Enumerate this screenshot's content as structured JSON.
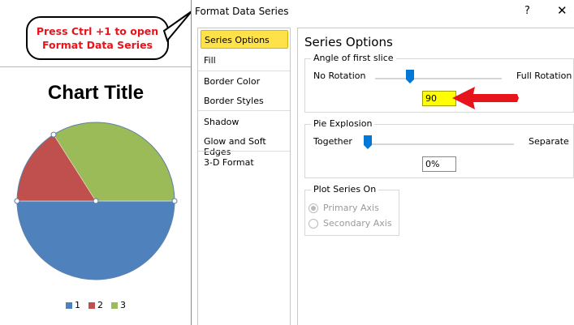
{
  "callout": {
    "line1": "Press Ctrl +1 to open",
    "line2": "Format Data Series"
  },
  "chart": {
    "title": "Chart Title"
  },
  "chart_data": {
    "type": "pie",
    "title": "Chart Title",
    "categories": [
      "1",
      "2",
      "3"
    ],
    "values": [
      50,
      16,
      34
    ],
    "colors": [
      "#4f81bd",
      "#c0504d",
      "#9bbb59"
    ],
    "first_slice_angle": 90,
    "legend_position": "bottom"
  },
  "dialog": {
    "title": "Format Data Series",
    "help": "?",
    "close": "✕",
    "nav": [
      "Series Options",
      "Fill",
      "Border Color",
      "Border Styles",
      "Shadow",
      "Glow and Soft Edges",
      "3-D Format"
    ],
    "selected_nav": "Series Options",
    "section_title": "Series Options",
    "angle": {
      "label": "Angle of first slice",
      "min_label": "No Rotation",
      "max_label": "Full Rotation",
      "value": "90",
      "fraction": 0.25
    },
    "explosion": {
      "label": "Pie Explosion",
      "min_label": "Together",
      "max_label": "Separate",
      "value": "0%",
      "fraction": 0
    },
    "plot_on": {
      "label": "Plot Series On",
      "primary": "Primary Axis",
      "secondary": "Secondary Axis",
      "selected": "Primary Axis"
    }
  },
  "colors": {
    "highlight": "#ffff00",
    "accent": "#0078d7",
    "arrow": "#e8141c"
  }
}
